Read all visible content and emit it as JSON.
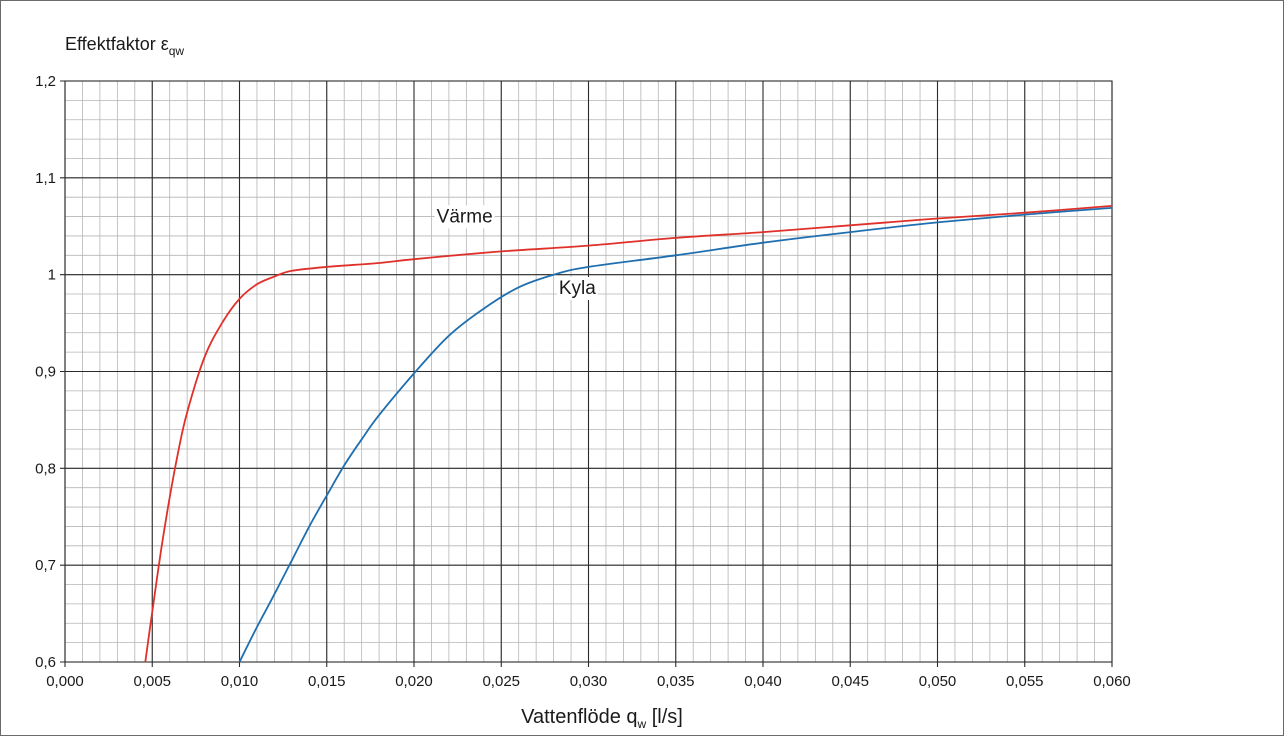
{
  "chart_data": {
    "type": "line",
    "title": "",
    "ylabel": {
      "main": "Effektfaktor ε",
      "sub": "qw"
    },
    "xlabel": {
      "main": "Vattenflöde q",
      "sub": "w",
      "unit": " [l/s]"
    },
    "xlim": [
      0.0,
      0.06
    ],
    "ylim": [
      0.6,
      1.2
    ],
    "xticks": [
      0.0,
      0.005,
      0.01,
      0.015,
      0.02,
      0.025,
      0.03,
      0.035,
      0.04,
      0.045,
      0.05,
      0.055,
      0.06
    ],
    "xtick_labels": [
      "0,000",
      "0,005",
      "0,010",
      "0,015",
      "0,020",
      "0,025",
      "0,030",
      "0,035",
      "0,040",
      "0,045",
      "0,050",
      "0,055",
      "0,060"
    ],
    "yticks": [
      0.6,
      0.7,
      0.8,
      0.9,
      1.0,
      1.1,
      1.2
    ],
    "ytick_labels": [
      "0,6",
      "0,7",
      "0,8",
      "0,9",
      "1",
      "1,1",
      "1,2"
    ],
    "grid": {
      "major": true,
      "minor": true,
      "minor_x_per_major": 5,
      "minor_y_per_major": 5
    },
    "series": [
      {
        "name": "Värme",
        "color": "#e0302a",
        "label_at": {
          "x": 0.0213,
          "y": 1.054
        },
        "points": [
          [
            0.0046,
            0.6
          ],
          [
            0.005,
            0.652
          ],
          [
            0.0055,
            0.715
          ],
          [
            0.006,
            0.77
          ],
          [
            0.0065,
            0.818
          ],
          [
            0.007,
            0.858
          ],
          [
            0.008,
            0.915
          ],
          [
            0.009,
            0.95
          ],
          [
            0.01,
            0.975
          ],
          [
            0.011,
            0.99
          ],
          [
            0.012,
            0.998
          ],
          [
            0.013,
            1.004
          ],
          [
            0.015,
            1.008
          ],
          [
            0.018,
            1.012
          ],
          [
            0.02,
            1.016
          ],
          [
            0.025,
            1.024
          ],
          [
            0.03,
            1.03
          ],
          [
            0.035,
            1.038
          ],
          [
            0.04,
            1.044
          ],
          [
            0.045,
            1.051
          ],
          [
            0.05,
            1.058
          ],
          [
            0.055,
            1.064
          ],
          [
            0.06,
            1.071
          ]
        ]
      },
      {
        "name": "Kyla",
        "color": "#1f6fb0",
        "label_at": {
          "x": 0.0283,
          "y": 0.98
        },
        "points": [
          [
            0.01,
            0.6
          ],
          [
            0.011,
            0.636
          ],
          [
            0.012,
            0.67
          ],
          [
            0.013,
            0.705
          ],
          [
            0.014,
            0.74
          ],
          [
            0.015,
            0.772
          ],
          [
            0.016,
            0.803
          ],
          [
            0.017,
            0.83
          ],
          [
            0.018,
            0.855
          ],
          [
            0.02,
            0.898
          ],
          [
            0.022,
            0.937
          ],
          [
            0.024,
            0.965
          ],
          [
            0.026,
            0.987
          ],
          [
            0.028,
            1.0
          ],
          [
            0.03,
            1.008
          ],
          [
            0.035,
            1.02
          ],
          [
            0.04,
            1.033
          ],
          [
            0.045,
            1.044
          ],
          [
            0.05,
            1.054
          ],
          [
            0.055,
            1.062
          ],
          [
            0.06,
            1.069
          ]
        ]
      }
    ]
  }
}
